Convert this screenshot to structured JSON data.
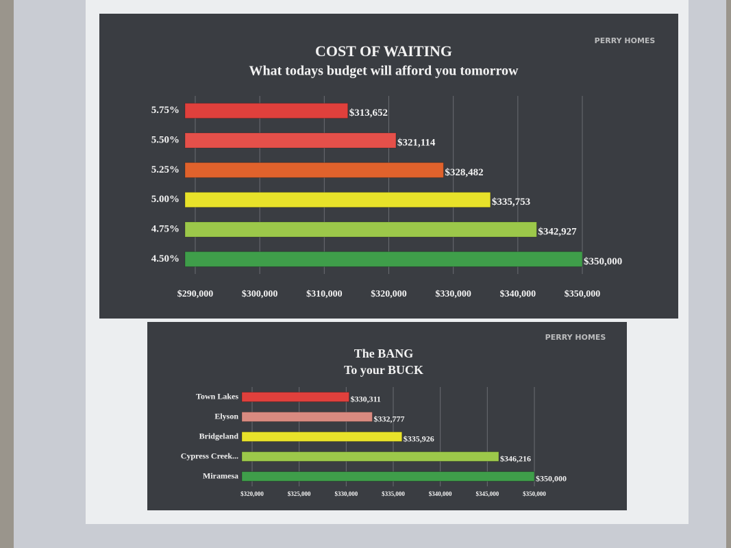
{
  "chart_data": [
    {
      "type": "bar",
      "orientation": "horizontal",
      "logo": "PERRY HOMES",
      "title": "COST OF WAITING",
      "subtitle": "What todays budget will afford you tomorrow",
      "categories": [
        "5.75%",
        "5.50%",
        "5.25%",
        "5.00%",
        "4.75%",
        "4.50%"
      ],
      "values": [
        313652,
        321114,
        328482,
        335753,
        342927,
        350000
      ],
      "value_labels": [
        "$313,652",
        "$321,114",
        "$328,482",
        "$335,753",
        "$342,927",
        "$350,000"
      ],
      "colors": [
        "#e0403c",
        "#e5504a",
        "#e0622c",
        "#e8e22a",
        "#9cc84a",
        "#3f9e4a"
      ],
      "xlim": [
        290000,
        350000
      ],
      "xticks": [
        {
          "value": 290000,
          "label": "$290,000"
        },
        {
          "value": 300000,
          "label": "$300,000"
        },
        {
          "value": 310000,
          "label": "$310,000"
        },
        {
          "value": 320000,
          "label": "$320,000"
        },
        {
          "value": 330000,
          "label": "$330,000"
        },
        {
          "value": 340000,
          "label": "$340,000"
        },
        {
          "value": 350000,
          "label": "$350,000"
        }
      ],
      "grid": true
    },
    {
      "type": "bar",
      "orientation": "horizontal",
      "logo": "PERRY HOMES",
      "title": "The BANG",
      "subtitle": "To your BUCK",
      "categories": [
        "Town Lakes",
        "Elyson",
        "Bridgeland",
        "Cypress Creek...",
        "Miramesa"
      ],
      "values": [
        330311,
        332777,
        335926,
        346216,
        350000
      ],
      "value_labels": [
        "$330,311",
        "$332,777",
        "$335,926",
        "$346,216",
        "$350,000"
      ],
      "colors": [
        "#e0403c",
        "#d98a80",
        "#e8e22a",
        "#9cc84a",
        "#3f9e4a"
      ],
      "xlim": [
        320000,
        350000
      ],
      "xticks": [
        {
          "value": 320000,
          "label": "$320,000"
        },
        {
          "value": 325000,
          "label": "$325,000"
        },
        {
          "value": 330000,
          "label": "$330,000"
        },
        {
          "value": 335000,
          "label": "$335,000"
        },
        {
          "value": 340000,
          "label": "$340,000"
        },
        {
          "value": 345000,
          "label": "$345,000"
        },
        {
          "value": 350000,
          "label": "$350,000"
        }
      ],
      "grid": true
    }
  ]
}
